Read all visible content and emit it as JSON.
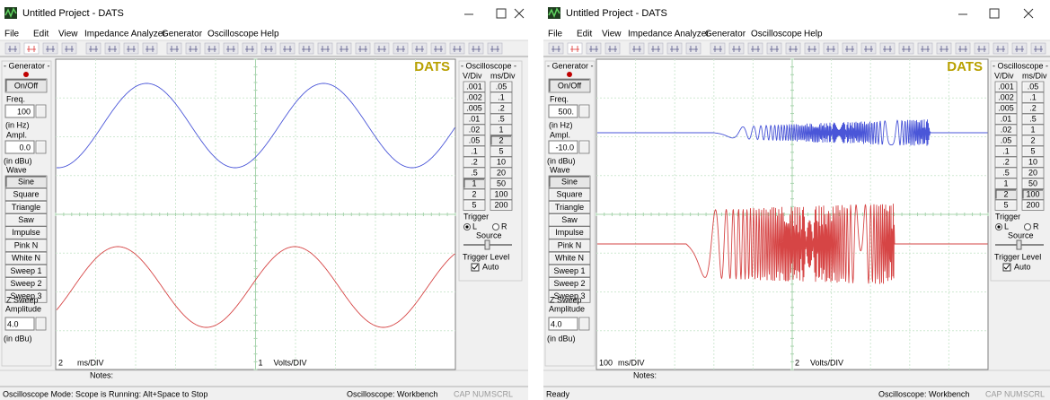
{
  "windows": [
    {
      "title": "Untitled Project - DATS",
      "menu": [
        "File",
        "Edit",
        "View",
        "Impedance Analyzer",
        "Generator",
        "Oscilloscope",
        "Help"
      ],
      "generator": {
        "label": "- Generator -",
        "on_off": "On/Off",
        "freq_label": "Freq.",
        "freq_value": "100",
        "freq_unit": "(in Hz)",
        "ampl_label": "Ampl.",
        "ampl_value": "0.0",
        "ampl_unit": "(in dBu)",
        "wave_label": "Wave",
        "waves": [
          "Sine",
          "Square",
          "Triangle",
          "Saw",
          "Impulse",
          "Pink N",
          "White N",
          "Sweep 1",
          "Sweep 2",
          "Sweep 3"
        ],
        "zsweep_label": "Z Sweep",
        "zsweep_amp": "Amplitude",
        "zsweep_value": "4.0",
        "zsweep_unit": "(in dBu)"
      },
      "scope": {
        "brand": "DATS",
        "time_value": "2",
        "time_unit": "ms/DIV",
        "volt_value": "1",
        "volt_unit": "Volts/DIV"
      },
      "oscilloscope": {
        "label": "- Oscilloscope -",
        "vdiv_label": "V/Div",
        "msdiv_label": "ms/Div",
        "vdiv": [
          ".001",
          ".002",
          ".005",
          ".01",
          ".02",
          ".05",
          ".1",
          ".2",
          ".5",
          "1",
          "2",
          "5"
        ],
        "msdiv": [
          ".05",
          ".1",
          ".2",
          ".5",
          "1",
          "2",
          "5",
          "10",
          "20",
          "50",
          "100",
          "200"
        ],
        "vdiv_selected": 9,
        "msdiv_selected": 5,
        "trigger": "Trigger",
        "left": "L",
        "right": "R",
        "source": "Source",
        "trigger_level": "Trigger Level",
        "auto": "Auto"
      },
      "notes": "Notes:",
      "status": {
        "message": "Oscilloscope Mode: Scope is Running: Alt+Space to Stop",
        "mode": "Oscilloscope: Workbench",
        "keys": [
          "CAP",
          "NUM",
          "SCRL"
        ]
      }
    },
    {
      "title": "Untitled Project - DATS",
      "menu": [
        "File",
        "Edit",
        "View",
        "Impedance Analyzer",
        "Generator",
        "Oscilloscope",
        "Help"
      ],
      "generator": {
        "label": "- Generator -",
        "on_off": "On/Off",
        "freq_label": "Freq.",
        "freq_value": "500.",
        "freq_unit": "(in Hz)",
        "ampl_label": "Ampl.",
        "ampl_value": "-10.0",
        "ampl_unit": "(in dBu)",
        "wave_label": "Wave",
        "waves": [
          "Sine",
          "Square",
          "Triangle",
          "Saw",
          "Impulse",
          "Pink N",
          "White N",
          "Sweep 1",
          "Sweep 2",
          "Sweep 3"
        ],
        "zsweep_label": "Z Sweep",
        "zsweep_amp": "Amplitude",
        "zsweep_value": "4.0",
        "zsweep_unit": "(in dBu)"
      },
      "scope": {
        "brand": "DATS",
        "time_value": "100",
        "time_unit": "ms/DIV",
        "volt_value": "2",
        "volt_unit": "Volts/DIV"
      },
      "oscilloscope": {
        "label": "- Oscilloscope -",
        "vdiv_label": "V/Div",
        "msdiv_label": "ms/Div",
        "vdiv": [
          ".001",
          ".002",
          ".005",
          ".01",
          ".02",
          ".05",
          ".1",
          ".2",
          ".5",
          "1",
          "2",
          "5"
        ],
        "msdiv": [
          ".05",
          ".1",
          ".2",
          ".5",
          "1",
          "2",
          "5",
          "10",
          "20",
          "50",
          "100",
          "200"
        ],
        "vdiv_selected": 10,
        "msdiv_selected": 10,
        "trigger": "Trigger",
        "left": "L",
        "right": "R",
        "source": "Source",
        "trigger_level": "Trigger Level",
        "auto": "Auto"
      },
      "notes": "Notes:",
      "status": {
        "message": "Ready",
        "mode": "Oscilloscope: Workbench",
        "keys": [
          "CAP",
          "NUM",
          "SCRL"
        ]
      }
    }
  ]
}
